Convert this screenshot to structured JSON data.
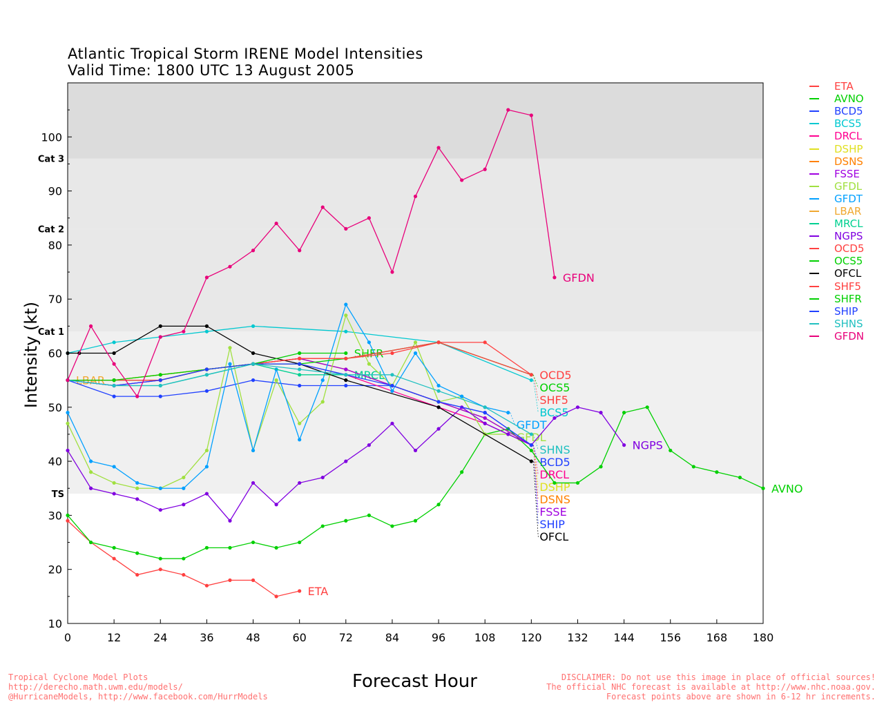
{
  "title": {
    "line1": "Atlantic Tropical Storm IRENE Model Intensities",
    "line2": "Valid Time: 1800 UTC 13 August 2005"
  },
  "footer": {
    "left": [
      "Tropical Cyclone Model Plots",
      "http://derecho.math.uwm.edu/models/",
      "@HurricaneModels, http://www.facebook.com/HurrModels"
    ],
    "right": [
      "DISCLAIMER: Do not use this image in place of official sources!",
      "The official NHC forecast is available at http://www.nhc.noaa.gov.",
      "Forecast points above are shown in 6-12 hr increments."
    ]
  },
  "chart_data": {
    "type": "line",
    "title": "Atlantic Tropical Storm IRENE Model Intensities",
    "xlabel": "Forecast Hour",
    "ylabel": "Intensity (kt)",
    "xlim": [
      0,
      180
    ],
    "ylim": [
      10,
      110
    ],
    "xticks": [
      0,
      12,
      24,
      36,
      48,
      60,
      72,
      84,
      96,
      108,
      120,
      132,
      144,
      156,
      168,
      180
    ],
    "yticks": [
      10,
      20,
      30,
      40,
      50,
      60,
      70,
      80,
      90,
      100
    ],
    "legend_position": "right",
    "categories": [
      {
        "label": "TS",
        "min": 34
      },
      {
        "label": "Cat 1",
        "min": 64
      },
      {
        "label": "Cat 2",
        "min": 83
      },
      {
        "label": "Cat 3",
        "min": 96
      }
    ],
    "category_colors": [
      "#f0f0f0",
      "#e8e8e8",
      "#e8e8e8",
      "#dcdcdc"
    ],
    "series": [
      {
        "name": "ETA",
        "color": "#ff4040",
        "x": [
          0,
          6,
          12,
          18,
          24,
          30,
          36,
          42,
          48,
          54,
          60
        ],
        "y": [
          29,
          25,
          22,
          19,
          20,
          19,
          17,
          18,
          18,
          15,
          16
        ]
      },
      {
        "name": "AVNO",
        "color": "#00d000",
        "x": [
          0,
          6,
          12,
          18,
          24,
          30,
          36,
          42,
          48,
          54,
          60,
          66,
          72,
          78,
          84,
          90,
          96,
          102,
          108,
          114,
          120,
          126,
          132,
          138,
          144,
          150,
          156,
          162,
          168,
          174,
          180
        ],
        "y": [
          30,
          25,
          24,
          23,
          22,
          22,
          24,
          24,
          25,
          24,
          25,
          28,
          29,
          30,
          28,
          29,
          32,
          38,
          45,
          46,
          42,
          36,
          36,
          39,
          49,
          50,
          42,
          39,
          38,
          37,
          35
        ]
      },
      {
        "name": "BCD5",
        "color": "#2040ff",
        "x": [
          0,
          12,
          24,
          36,
          48,
          60,
          72,
          84,
          96,
          108,
          120
        ],
        "y": [
          55,
          52,
          52,
          53,
          55,
          54,
          54,
          54,
          51,
          49,
          43
        ]
      },
      {
        "name": "BCS5",
        "color": "#00c8d0",
        "x": [
          0,
          12,
          24,
          36,
          48,
          72,
          96,
          120
        ],
        "y": [
          60,
          62,
          63,
          64,
          65,
          64,
          62,
          55
        ]
      },
      {
        "name": "DRCL",
        "color": "#ff0090",
        "x": [
          0,
          12,
          24,
          36,
          48,
          60,
          72,
          84,
          96,
          108,
          120
        ],
        "y": [
          55,
          54,
          55,
          57,
          58,
          58,
          56,
          53,
          50,
          47,
          43
        ]
      },
      {
        "name": "DSHP",
        "color": "#e0e020",
        "x": [
          0,
          12,
          24,
          36,
          48,
          60,
          72,
          84,
          96,
          108,
          120
        ],
        "y": [
          55,
          55,
          56,
          57,
          58,
          59,
          57,
          54,
          51,
          48,
          43
        ]
      },
      {
        "name": "DSNS",
        "color": "#ff8000",
        "x": [
          0,
          12,
          24,
          36,
          48,
          60,
          72,
          84,
          96,
          108,
          120
        ],
        "y": [
          55,
          55,
          56,
          57,
          58,
          59,
          57,
          54,
          51,
          48,
          43
        ]
      },
      {
        "name": "FSSE",
        "color": "#a000e0",
        "x": [
          0,
          12,
          24,
          36,
          48,
          60,
          72,
          84,
          96,
          108,
          120
        ],
        "y": [
          55,
          54,
          55,
          57,
          58,
          59,
          57,
          54,
          51,
          48,
          43
        ]
      },
      {
        "name": "GFDL",
        "color": "#a0e040",
        "x": [
          0,
          6,
          12,
          18,
          24,
          30,
          36,
          42,
          48,
          54,
          60,
          66,
          72,
          78,
          84,
          90,
          96,
          102,
          108,
          114
        ],
        "y": [
          47,
          38,
          36,
          35,
          35,
          37,
          42,
          61,
          42,
          55,
          47,
          51,
          67,
          58,
          54,
          62,
          51,
          52,
          45,
          45
        ]
      },
      {
        "name": "GFDT",
        "color": "#00a0ff",
        "x": [
          0,
          6,
          12,
          18,
          24,
          30,
          36,
          42,
          48,
          54,
          60,
          66,
          72,
          78,
          84,
          90,
          96,
          102,
          108,
          114
        ],
        "y": [
          49,
          40,
          39,
          36,
          35,
          35,
          39,
          58,
          42,
          57,
          44,
          55,
          69,
          62,
          53,
          60,
          54,
          52,
          50,
          49
        ]
      },
      {
        "name": "LBAR",
        "color": "#f0a830",
        "x": [
          0
        ],
        "y": [
          55
        ]
      },
      {
        "name": "MRCL",
        "color": "#00d090",
        "x": [
          0,
          12,
          24,
          36,
          48,
          60,
          72
        ],
        "y": [
          55,
          54,
          54,
          56,
          58,
          56,
          56
        ]
      },
      {
        "name": "NGPS",
        "color": "#8000e0",
        "x": [
          0,
          6,
          12,
          18,
          24,
          30,
          36,
          42,
          48,
          54,
          60,
          66,
          72,
          78,
          84,
          90,
          96,
          102,
          108,
          114,
          120,
          126,
          132,
          138,
          144
        ],
        "y": [
          42,
          35,
          34,
          33,
          31,
          32,
          34,
          29,
          36,
          32,
          36,
          37,
          40,
          43,
          47,
          42,
          46,
          50,
          47,
          45,
          43,
          48,
          50,
          49,
          43
        ]
      },
      {
        "name": "OCD5",
        "color": "#ff4040",
        "x": [
          0,
          12,
          24,
          36,
          48,
          60,
          72,
          84,
          96,
          108,
          120
        ],
        "y": [
          55,
          55,
          55,
          57,
          58,
          59,
          59,
          60,
          62,
          62,
          56
        ]
      },
      {
        "name": "OCS5",
        "color": "#00d000",
        "x": [
          0,
          12,
          24,
          36,
          48,
          60,
          72,
          96,
          120
        ],
        "y": [
          55,
          55,
          55,
          57,
          58,
          58,
          59,
          62,
          56
        ]
      },
      {
        "name": "OFCL",
        "color": "#000000",
        "x": [
          0,
          3,
          12,
          24,
          36,
          48,
          60,
          72,
          96,
          120
        ],
        "y": [
          60,
          60,
          60,
          65,
          65,
          60,
          58,
          55,
          50,
          40
        ]
      },
      {
        "name": "SHF5",
        "color": "#ff4040",
        "x": [
          0,
          12,
          24,
          36,
          48,
          60,
          72,
          96,
          120
        ],
        "y": [
          55,
          55,
          55,
          57,
          58,
          59,
          59,
          62,
          56
        ]
      },
      {
        "name": "SHFR",
        "color": "#00d000",
        "x": [
          0,
          12,
          24,
          36,
          48,
          60,
          72
        ],
        "y": [
          55,
          55,
          56,
          57,
          58,
          60,
          60
        ]
      },
      {
        "name": "SHIP",
        "color": "#2040ff",
        "x": [
          0,
          12,
          24,
          36,
          48,
          60,
          72,
          84,
          96,
          108,
          120
        ],
        "y": [
          55,
          54,
          55,
          57,
          58,
          58,
          56,
          54,
          51,
          49,
          43
        ]
      },
      {
        "name": "SHNS",
        "color": "#20c0c0",
        "x": [
          0,
          12,
          24,
          36,
          48,
          60,
          72,
          84,
          96,
          108,
          120
        ],
        "y": [
          55,
          54,
          54,
          56,
          58,
          57,
          56,
          56,
          53,
          50,
          45
        ]
      },
      {
        "name": "GFDN",
        "color": "#e8007a",
        "x": [
          0,
          6,
          12,
          18,
          24,
          30,
          36,
          42,
          48,
          54,
          60,
          66,
          72,
          78,
          84,
          90,
          96,
          102,
          108,
          114,
          120,
          126
        ],
        "y": [
          55,
          65,
          58,
          52,
          63,
          64,
          74,
          76,
          79,
          84,
          79,
          87,
          83,
          85,
          75,
          89,
          98,
          92,
          94,
          105,
          104,
          74
        ]
      }
    ]
  }
}
